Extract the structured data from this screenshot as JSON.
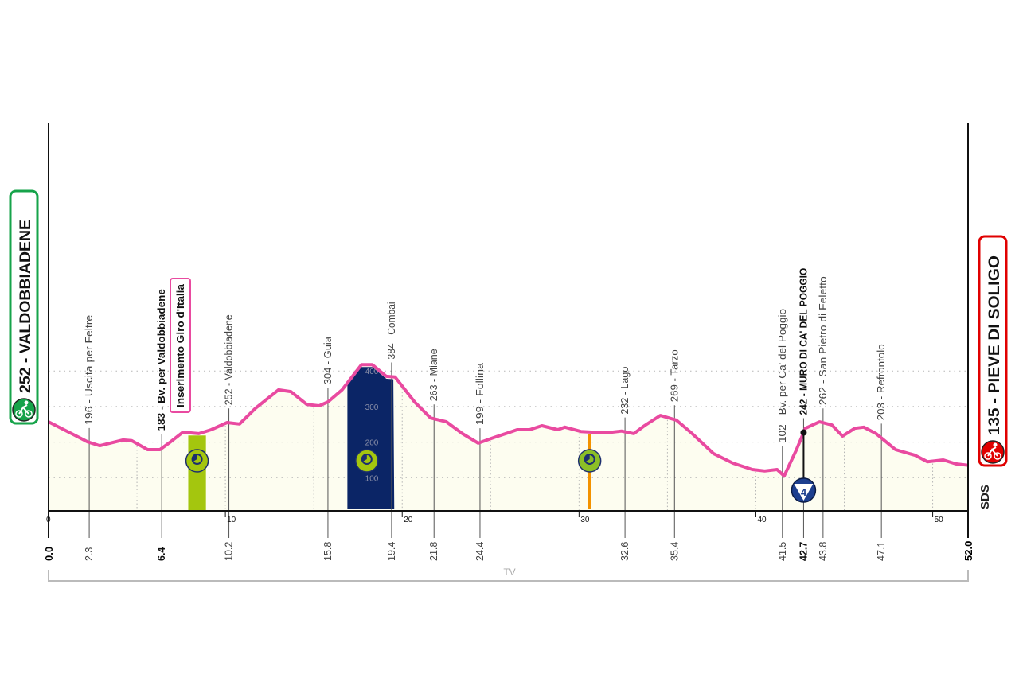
{
  "chart_data": {
    "type": "area",
    "title": "",
    "xlabel": "",
    "ylabel": "",
    "xlim": [
      0,
      52.0
    ],
    "ylim": [
      0,
      500
    ],
    "x_ticks": [
      0,
      10,
      20,
      30,
      40,
      50
    ],
    "y_ticks": [
      100,
      200,
      300,
      400
    ],
    "grid": true,
    "colors": {
      "line": "#e94aa0",
      "fill": "#fdfdf0",
      "start": "#16a34a",
      "finish": "#e00000",
      "band_green": "#a4c60e",
      "band_navy": "#0b2566",
      "band_orange": "#f39200"
    },
    "profile": [
      [
        0,
        257
      ],
      [
        1.3,
        224
      ],
      [
        2.2,
        201
      ],
      [
        2.9,
        190
      ],
      [
        4.2,
        206
      ],
      [
        4.7,
        204
      ],
      [
        5.6,
        179
      ],
      [
        6.3,
        179
      ],
      [
        6.9,
        201
      ],
      [
        7.6,
        228
      ],
      [
        8.5,
        224
      ],
      [
        9.2,
        235
      ],
      [
        10.1,
        255
      ],
      [
        10.8,
        251
      ],
      [
        11.7,
        295
      ],
      [
        13.0,
        347
      ],
      [
        13.7,
        342
      ],
      [
        14.6,
        306
      ],
      [
        15.3,
        302
      ],
      [
        15.8,
        313
      ],
      [
        16.6,
        347
      ],
      [
        17.7,
        418
      ],
      [
        18.3,
        418
      ],
      [
        19.1,
        385
      ],
      [
        19.6,
        383
      ],
      [
        20.7,
        313
      ],
      [
        21.6,
        268
      ],
      [
        22.5,
        257
      ],
      [
        23.4,
        224
      ],
      [
        24.3,
        197
      ],
      [
        25.2,
        213
      ],
      [
        26.5,
        235
      ],
      [
        27.2,
        235
      ],
      [
        27.9,
        246
      ],
      [
        28.8,
        235
      ],
      [
        29.2,
        242
      ],
      [
        30.1,
        230
      ],
      [
        31.5,
        226
      ],
      [
        32.4,
        231
      ],
      [
        33.1,
        224
      ],
      [
        33.7,
        246
      ],
      [
        34.6,
        275
      ],
      [
        35.5,
        262
      ],
      [
        36.4,
        224
      ],
      [
        37.6,
        168
      ],
      [
        38.7,
        141
      ],
      [
        39.8,
        123
      ],
      [
        40.5,
        119
      ],
      [
        41.2,
        123
      ],
      [
        41.6,
        105
      ],
      [
        42.3,
        179
      ],
      [
        42.8,
        239
      ],
      [
        43.6,
        257
      ],
      [
        44.3,
        248
      ],
      [
        44.9,
        217
      ],
      [
        45.6,
        239
      ],
      [
        46.1,
        242
      ],
      [
        46.8,
        224
      ],
      [
        47.9,
        179
      ],
      [
        49.0,
        163
      ],
      [
        49.7,
        145
      ],
      [
        50.6,
        150
      ],
      [
        51.3,
        139
      ],
      [
        52.0,
        135
      ]
    ],
    "start": {
      "label": "252 - VALDOBBIADENE",
      "km_label": "0.0",
      "icon": "cyclist-icon"
    },
    "finish": {
      "label": "135 - PIEVE DI SOLIGO",
      "km_label": "52.0",
      "icon": "cyclist-icon"
    },
    "waypoints": [
      {
        "km": 2.3,
        "km_label": "2.3",
        "label": "196 - Uscita per Feltre",
        "bold": false
      },
      {
        "km": 6.4,
        "km_label": "6.4",
        "label": "183 - Bv. per Valdobbiadene",
        "bold": true
      },
      {
        "km": 10.2,
        "km_label": "10.2",
        "label": "252 - Valdobbiadene",
        "bold": false
      },
      {
        "km": 15.8,
        "km_label": "15.8",
        "label": "304 - Guia",
        "bold": false
      },
      {
        "km": 19.4,
        "km_label": "19.4",
        "label": "384 - Combai",
        "bold": false
      },
      {
        "km": 21.8,
        "km_label": "21.8",
        "label": "263 - Miane",
        "bold": false
      },
      {
        "km": 24.4,
        "km_label": "24.4",
        "label": "199 - Follina",
        "bold": false
      },
      {
        "km": 32.6,
        "km_label": "32.6",
        "label": "232 - Lago",
        "bold": false
      },
      {
        "km": 35.4,
        "km_label": "35.4",
        "label": "269 - Tarzo",
        "bold": false
      },
      {
        "km": 41.5,
        "km_label": "41.5",
        "label": "102 - Bv. per Ca' del Poggio",
        "bold": false
      },
      {
        "km": 42.7,
        "km_label": "42.7",
        "label": "242 - MURO DI CA' DEL POGGIO",
        "bold": true
      },
      {
        "km": 43.8,
        "km_label": "43.8",
        "label": "262 - San Pietro di Feletto",
        "bold": false
      },
      {
        "km": 47.1,
        "km_label": "47.1",
        "label": "203 - Refrontolo",
        "bold": false
      }
    ],
    "annotation": "Inserimento Giro d'Italia",
    "climb_category": "4",
    "province": "TV",
    "logo": "SDS"
  }
}
